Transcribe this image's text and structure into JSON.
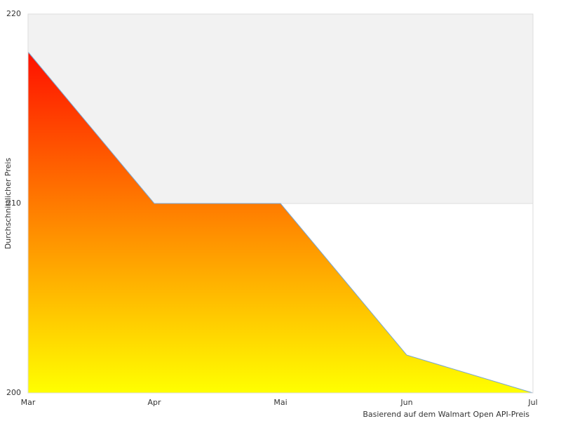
{
  "chart_data": {
    "type": "area",
    "categories": [
      "Mar",
      "Apr",
      "Mai",
      "Jun",
      "Jul"
    ],
    "values": [
      218,
      210,
      210,
      202,
      200
    ],
    "ylabel": "Durchschnittlicher Preis",
    "footnote": "Basierend auf dem Walmart Open API-Preis",
    "ylim": [
      200,
      220
    ],
    "yticks": [
      200,
      210,
      220
    ],
    "grid": true,
    "band_colors": [
      "#ffffff",
      "#f2f2f2"
    ],
    "gradient": [
      "#ff1000",
      "#ffff00"
    ],
    "line_color": "#7aa6d0"
  }
}
